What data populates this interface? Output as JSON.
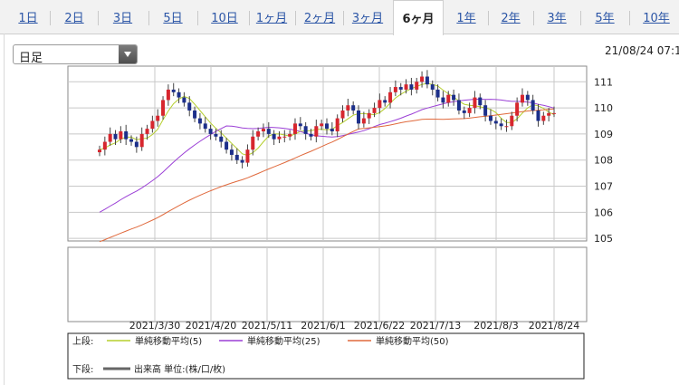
{
  "tabs": [
    {
      "label": "1日",
      "active": false
    },
    {
      "label": "2日",
      "active": false
    },
    {
      "label": "3日",
      "active": false
    },
    {
      "label": "5日",
      "active": false
    },
    {
      "label": "10日",
      "active": false
    },
    {
      "label": "1ヶ月",
      "active": false
    },
    {
      "label": "2ヶ月",
      "active": false
    },
    {
      "label": "3ヶ月",
      "active": false
    },
    {
      "label": "6ヶ月",
      "active": true
    },
    {
      "label": "1年",
      "active": false
    },
    {
      "label": "2年",
      "active": false
    },
    {
      "label": "3年",
      "active": false
    },
    {
      "label": "5年",
      "active": false
    },
    {
      "label": "10年",
      "active": false
    }
  ],
  "period_select": {
    "value": "日足"
  },
  "timestamp": "21/08/24 07:1",
  "colors": {
    "up_candle": "#d7262e",
    "down_candle": "#1c2f8a",
    "ma5": "#b5cf2d",
    "ma25": "#9b3fd6",
    "ma50": "#e0693c",
    "grid": "#c8c8c8",
    "frame": "#8a8a8a"
  },
  "chart_data": {
    "type": "candlestick",
    "title": "",
    "ylim": [
      104.9,
      111.6
    ],
    "y_ticks": [
      "111",
      "110",
      "109",
      "108",
      "107",
      "106",
      "105"
    ],
    "x_ticks": [
      "2021/3/30",
      "2021/4/20",
      "2021/5/11",
      "2021/6/1",
      "2021/6/22",
      "2021/7/13",
      "2021/8/3",
      "2021/8/24"
    ],
    "closes": [
      108.4,
      108.7,
      109.0,
      108.8,
      109.1,
      108.8,
      108.7,
      108.5,
      109.0,
      109.2,
      109.5,
      109.7,
      110.3,
      110.7,
      110.6,
      110.4,
      110.2,
      109.9,
      109.6,
      109.4,
      109.2,
      109.0,
      108.9,
      108.7,
      108.4,
      108.2,
      108.0,
      107.9,
      108.4,
      108.9,
      109.1,
      109.2,
      109.0,
      108.8,
      108.9,
      108.9,
      109.0,
      109.4,
      109.3,
      109.0,
      108.9,
      109.3,
      109.4,
      109.2,
      109.1,
      109.6,
      109.9,
      110.1,
      109.9,
      109.4,
      109.6,
      109.8,
      110.0,
      110.3,
      110.2,
      110.6,
      110.8,
      110.7,
      110.9,
      110.7,
      111.0,
      111.2,
      110.9,
      110.7,
      110.4,
      110.2,
      110.5,
      110.3,
      109.9,
      109.8,
      110.0,
      110.4,
      110.1,
      109.7,
      109.5,
      109.4,
      109.3,
      109.3,
      109.7,
      110.2,
      110.5,
      110.3,
      109.9,
      109.5,
      109.7,
      109.8,
      109.8
    ],
    "ma_legend_label": "上段:",
    "volume_legend_label": "下段:",
    "series": [
      {
        "name": "単純移動平均(5)",
        "values": []
      },
      {
        "name": "単純移動平均(25)",
        "values": []
      },
      {
        "name": "単純移動平均(50)",
        "values": []
      }
    ],
    "volume_series_name": "出来高 単位:(株/口/枚)"
  }
}
